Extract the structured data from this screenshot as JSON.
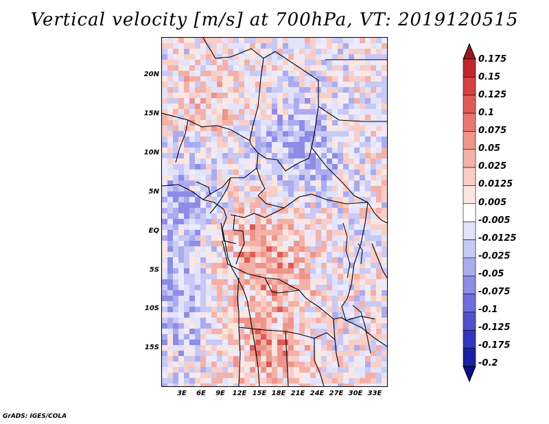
{
  "title": "Vertical velocity [m/s] at 700hPa, VT: 2019120515",
  "footer": "GrADS: IGES/COLA",
  "lat_labels": [
    "20N",
    "15N",
    "10N",
    "5N",
    "EQ",
    "5S",
    "10S",
    "15S"
  ],
  "lon_labels": [
    "3E",
    "6E",
    "9E",
    "12E",
    "15E",
    "18E",
    "21E",
    "24E",
    "27E",
    "30E",
    "33E"
  ],
  "colorbar": {
    "labels": [
      "0.175",
      "0.15",
      "0.125",
      "0.1",
      "0.075",
      "0.05",
      "0.025",
      "0.0125",
      "0.005",
      "-0.005",
      "-0.0125",
      "-0.025",
      "-0.05",
      "-0.075",
      "-0.1",
      "-0.125",
      "-0.175",
      "-0.2"
    ],
    "colors": [
      "#a0141e",
      "#c0262e",
      "#d6403e",
      "#e05a55",
      "#e8786f",
      "#ee958b",
      "#f3b1a8",
      "#f8cfc8",
      "#fbe6e2",
      "#ffffff",
      "#e2e2fb",
      "#c9c9f6",
      "#ababf0",
      "#8d8de8",
      "#6e6edd",
      "#5151cf",
      "#3636bd",
      "#1e1ea5",
      "#0d0d8a"
    ]
  }
}
